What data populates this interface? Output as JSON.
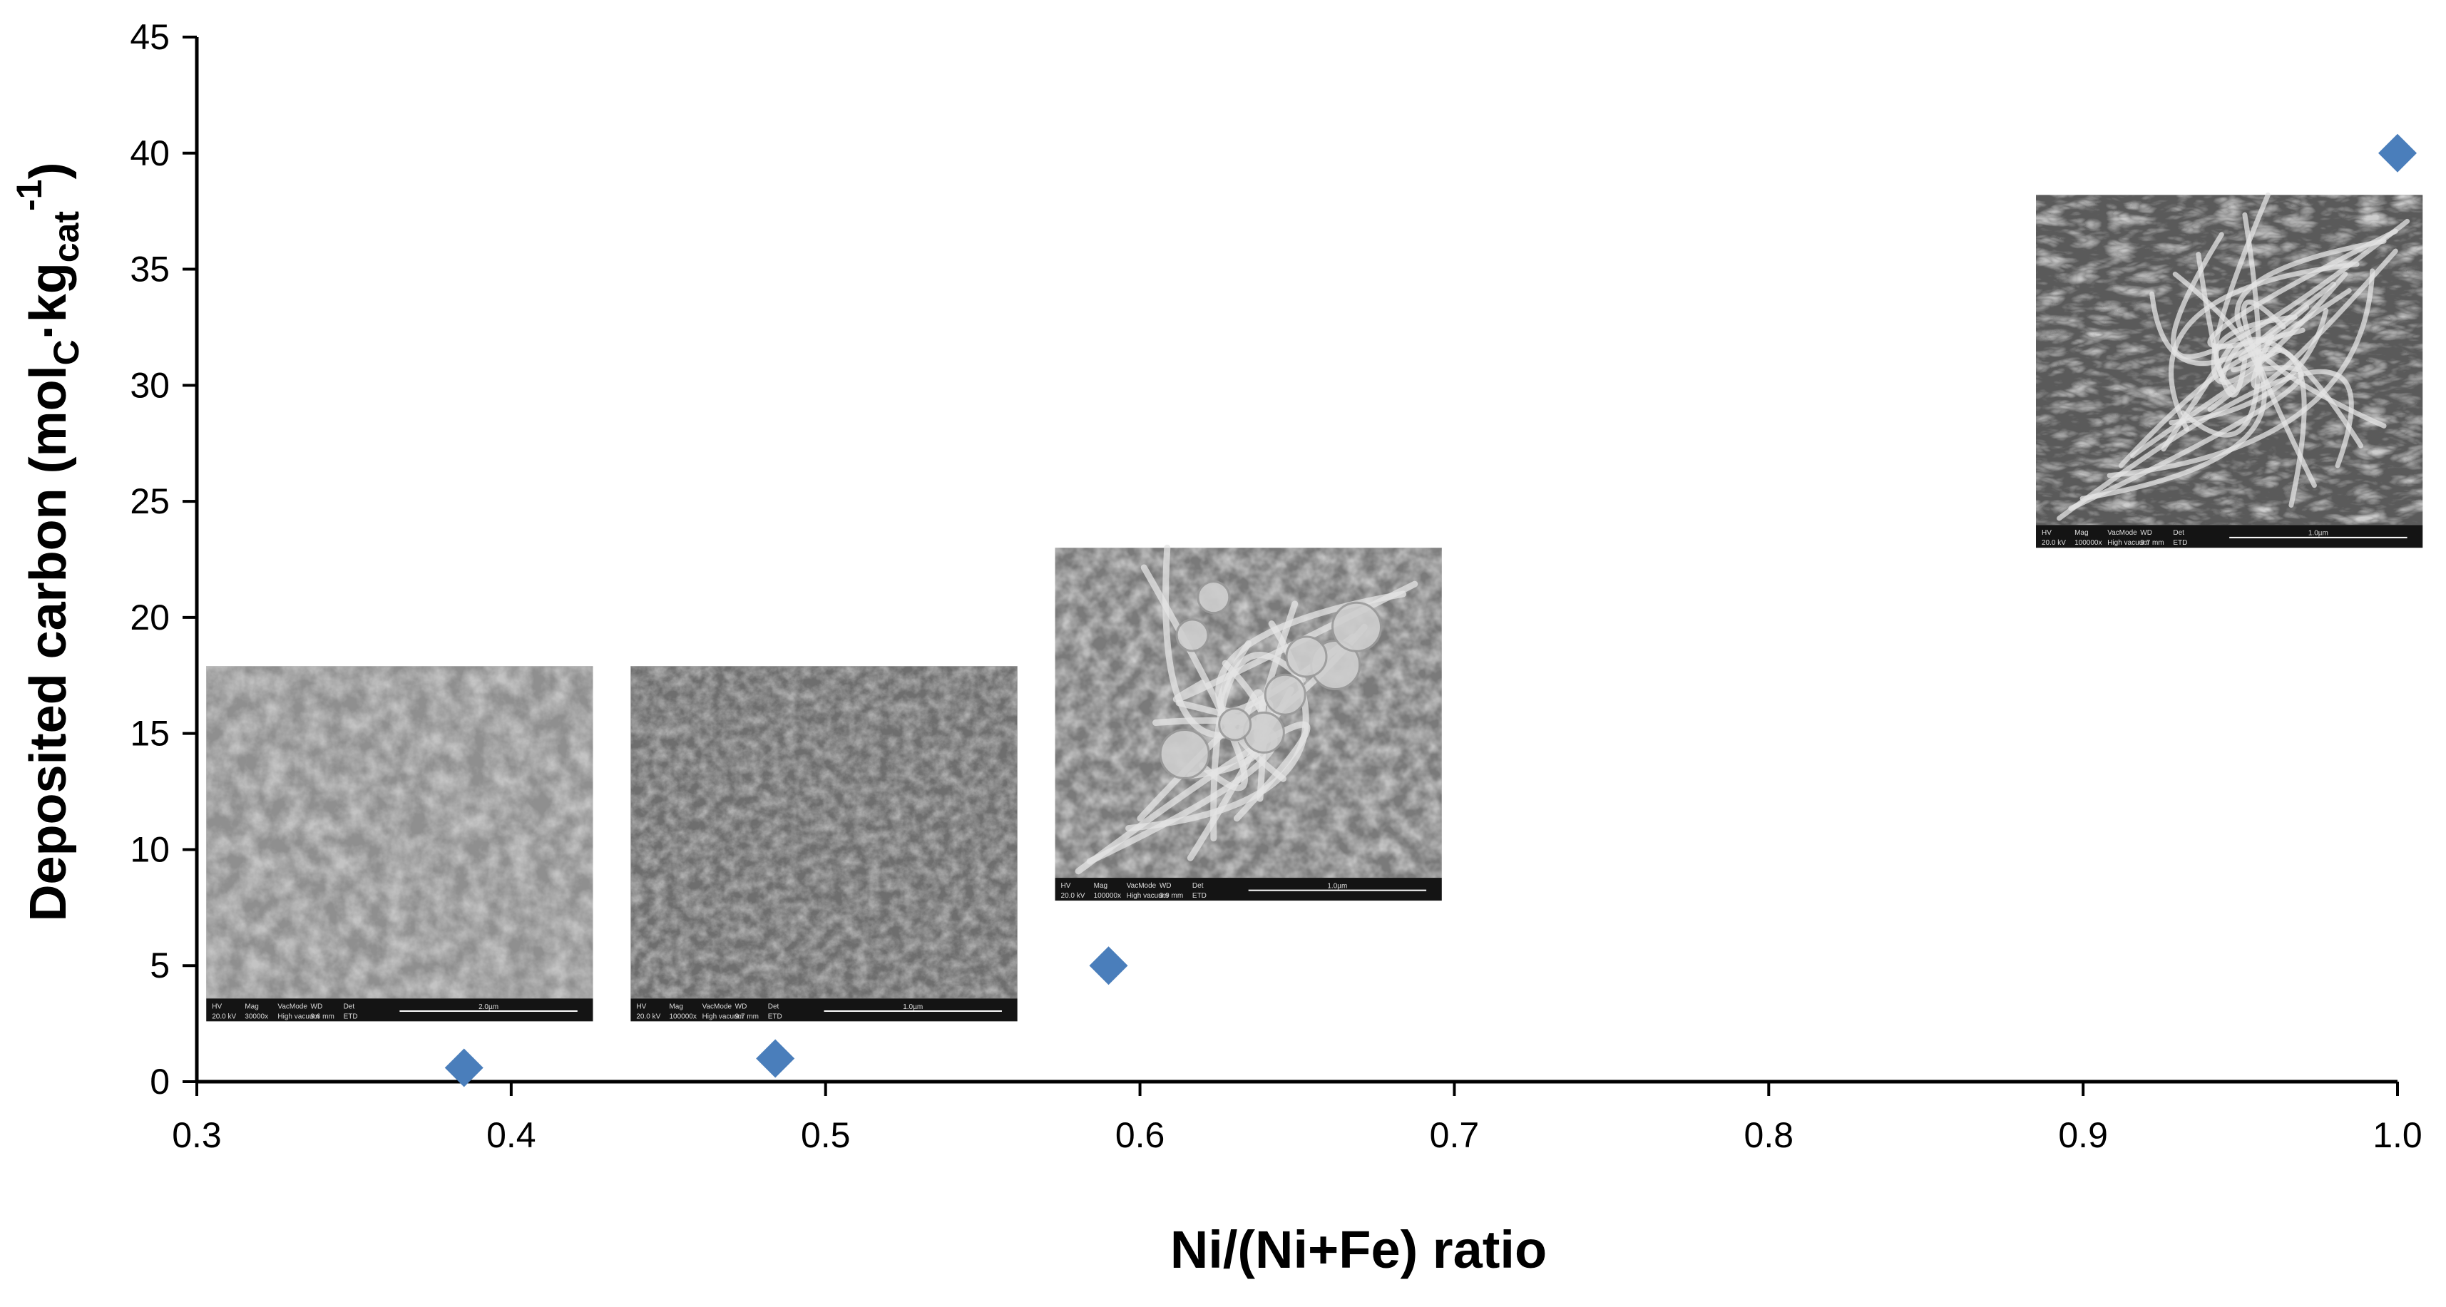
{
  "chart_data": {
    "type": "scatter",
    "title": "",
    "xlabel": "Ni/(Ni+Fe) ratio",
    "ylabel": {
      "prefix": "Deposited carbon (mol",
      "sub1": "C",
      "mid": "·kg",
      "sub2": "cat",
      "sup": "-1",
      "suffix": ")"
    },
    "xlim": [
      0.3,
      1.0
    ],
    "ylim": [
      0,
      45
    ],
    "x_ticks": [
      "0.3",
      "0.4",
      "0.5",
      "0.6",
      "0.7",
      "0.8",
      "0.9",
      "1.0"
    ],
    "y_ticks": [
      "0",
      "5",
      "10",
      "15",
      "20",
      "25",
      "30",
      "35",
      "40",
      "45"
    ],
    "grid": false,
    "marker": "diamond",
    "marker_color": "#4a7ebb",
    "points": [
      {
        "x": 0.385,
        "y": 0.6
      },
      {
        "x": 0.484,
        "y": 1.0
      },
      {
        "x": 0.59,
        "y": 5.0
      },
      {
        "x": 1.0,
        "y": 40.0
      }
    ],
    "inset_images": [
      {
        "kind": "sem-micrograph",
        "style": "granular",
        "x_range": [
          0.303,
          0.426
        ],
        "y_range": [
          2.6,
          17.9
        ],
        "captions": [
          "HV",
          "Mag",
          "VacMode",
          "WD",
          "Det",
          "20.0 kV",
          "30000x",
          "High vacuum",
          "9.6 mm",
          "ETD",
          "2.0µm"
        ]
      },
      {
        "kind": "sem-micrograph",
        "style": "flaky",
        "x_range": [
          0.438,
          0.561
        ],
        "y_range": [
          2.6,
          17.9
        ],
        "captions": [
          "HV",
          "Mag",
          "VacMode",
          "WD",
          "Det",
          "20.0 kV",
          "100000x",
          "High vacuum",
          "9.7 mm",
          "ETD",
          "1.0µm"
        ]
      },
      {
        "kind": "sem-micrograph",
        "style": "mixed-filaments",
        "x_range": [
          0.573,
          0.696
        ],
        "y_range": [
          7.8,
          23.0
        ],
        "captions": [
          "HV",
          "Mag",
          "VacMode",
          "WD",
          "Det",
          "20.0 kV",
          "100000x",
          "High vacuum",
          "9.9 mm",
          "ETD",
          "1.0µm"
        ]
      },
      {
        "kind": "sem-micrograph",
        "style": "nanofibers",
        "x_range": [
          0.885,
          1.008
        ],
        "y_range": [
          23.0,
          38.2
        ],
        "captions": [
          "HV",
          "Mag",
          "VacMode",
          "WD",
          "Det",
          "20.0 kV",
          "100000x",
          "High vacuum",
          "9.7 mm",
          "ETD",
          "1.0µm"
        ]
      }
    ]
  }
}
